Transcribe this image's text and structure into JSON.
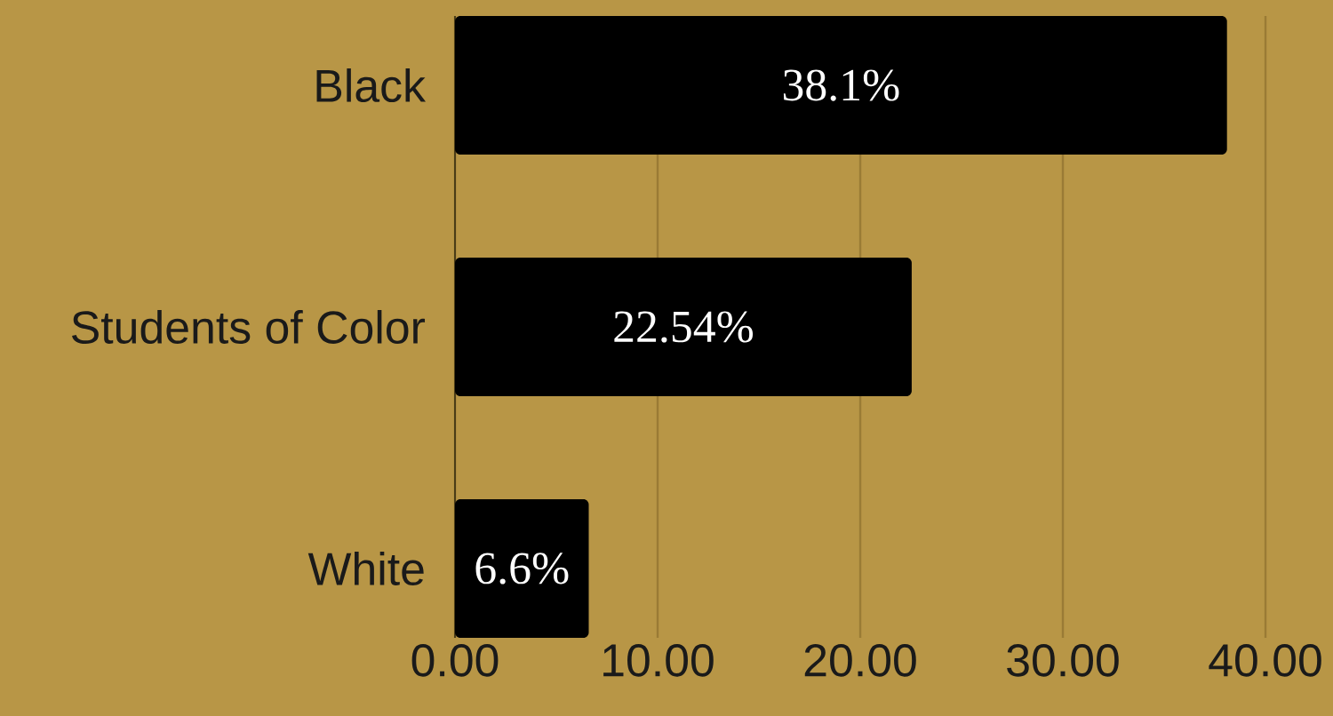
{
  "chart_data": {
    "type": "bar",
    "orientation": "horizontal",
    "categories": [
      "Black",
      "Students of Color",
      "White"
    ],
    "values": [
      38.1,
      22.54,
      6.6
    ],
    "color": "#000000",
    "value_labels": [
      "38.1%",
      "22.54%",
      "6.6%"
    ],
    "xlim": [
      0,
      40
    ],
    "xticks": [
      {
        "value": 0,
        "label": "0.00"
      },
      {
        "value": 10,
        "label": "10.00"
      },
      {
        "value": 20,
        "label": "20.00"
      },
      {
        "value": 30,
        "label": "30.00"
      },
      {
        "value": 40,
        "label": "40.00"
      }
    ],
    "grid": "x"
  }
}
